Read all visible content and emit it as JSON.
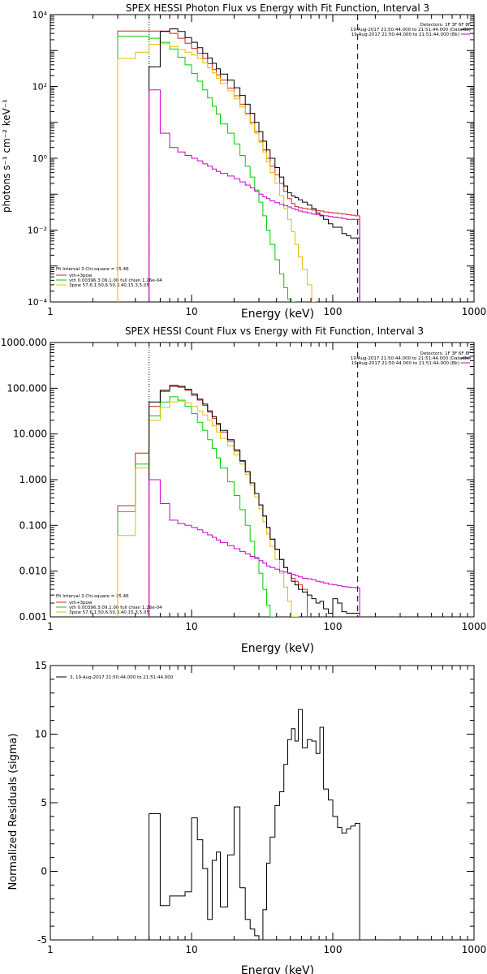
{
  "panels": [
    {
      "title": "SPEX HESSI Photon Flux vs Energy with Fit Function, Interval 3",
      "xlabel": "Energy (keV)",
      "ylabel": "photons s⁻¹ cm⁻² keV⁻¹",
      "info_lines": [
        "Detectors: 1F 3F 6F 8F",
        "19-Aug-2017 21:50:44.000 to 21:51:44.000 (Data-Bk)",
        "19-Aug-2017 21:50:44.000 to 21:51:44.000 (Bk)"
      ],
      "fit_lines": [
        "Fit Interval 3   Chi-square = 35.46",
        "vth+3pow",
        "vth 0.00396,3.09,1.00  full chian 1.26e-04",
        "3pow 57.6,1.50,6.50,3.40,15.3,5.05"
      ],
      "yticks": [
        {
          "v": 0.0001,
          "label": "10⁻⁴"
        },
        {
          "v": 0.01,
          "label": "10⁻²"
        },
        {
          "v": 1,
          "label": "10⁰"
        },
        {
          "v": 100,
          "label": "10²"
        },
        {
          "v": 10000,
          "label": "10⁴"
        }
      ]
    },
    {
      "title": "SPEX HESSI Count Flux vs Energy with Fit Function, Interval 3",
      "xlabel": "Energy (keV)",
      "ylabel": "",
      "info_lines": [
        "Detectors: 1F 3F 6F 8F",
        "19-Aug-2017 21:50:44.000 to 21:51:44.000 (Data-Bk)",
        "19-Aug-2017 21:50:44.000 to 21:51:44.000 (Bk)"
      ],
      "fit_lines": [
        "Fit Interval 3   Chi-square = 35.46",
        "vth+3pow",
        "vth 0.00396,3.09,1.00  full chian 1.26e-04",
        "3pow 57.6,1.50,6.50,3.40,15.3,5.05"
      ],
      "yticks": [
        {
          "v": 0.001,
          "label": "0.001"
        },
        {
          "v": 0.01,
          "label": "0.010"
        },
        {
          "v": 0.1,
          "label": "0.100"
        },
        {
          "v": 1,
          "label": "1.000"
        },
        {
          "v": 10,
          "label": "10.000"
        },
        {
          "v": 100,
          "label": "100.000"
        },
        {
          "v": 1000,
          "label": "1000.000"
        }
      ]
    },
    {
      "title": "",
      "xlabel": "Energy (keV)",
      "ylabel": "Normalized Residuals (sigma)",
      "legend_line": "3, 19-Aug-2017 21:50:44.000 to 21:51:44.000",
      "yticks": [
        {
          "v": -5,
          "label": "-5"
        },
        {
          "v": 0,
          "label": "0"
        },
        {
          "v": 5,
          "label": "5"
        },
        {
          "v": 10,
          "label": "10"
        },
        {
          "v": 15,
          "label": "15"
        }
      ]
    }
  ],
  "chart_data": [
    {
      "type": "line",
      "title": "SPEX HESSI Photon Flux vs Energy with Fit Function, Interval 3",
      "xlabel": "Energy (keV)",
      "ylabel": "photons s⁻¹ cm⁻² keV⁻¹",
      "xscale": "log",
      "yscale": "log",
      "xlim": [
        1,
        1000
      ],
      "ylim": [
        0.0001,
        10000
      ],
      "xticks": [
        1,
        10,
        100,
        1000
      ],
      "vlines": [
        {
          "x": 5,
          "style": "dotted"
        },
        {
          "x": 150,
          "style": "dashed"
        }
      ],
      "x_edges": [
        3,
        4,
        5,
        6,
        7,
        8,
        9,
        10,
        11,
        12,
        13,
        14,
        15,
        16,
        18,
        20,
        22,
        24,
        26,
        28,
        30,
        32,
        34,
        36,
        39,
        42,
        45,
        48,
        51,
        54,
        57,
        61,
        66,
        71,
        76,
        81,
        86,
        93,
        100,
        108,
        116,
        125,
        134,
        144,
        155
      ],
      "series": [
        {
          "name": "vth+3pow",
          "color": "#d42020",
          "start_edge": 0,
          "values": [
            3500,
            3500,
            3500,
            3500,
            3000,
            2200,
            1600,
            1150,
            830,
            600,
            430,
            300,
            210,
            150,
            90,
            55,
            32,
            18,
            10,
            5.5,
            3,
            1.7,
            1,
            0.6,
            0.35,
            0.2,
            0.12,
            0.075,
            0.055,
            0.045,
            0.042,
            0.04,
            0.038,
            0.036,
            0.035,
            0.034,
            0.032,
            0.031,
            0.03,
            0.029,
            0.028,
            0.027,
            0.026,
            0.025
          ]
        },
        {
          "name": "vth 0.00396,3.09,1.00  full chian 1.26e-04",
          "color": "#00cc00",
          "start_edge": 0,
          "values": [
            2500,
            2500,
            2200,
            1700,
            1100,
            650,
            400,
            230,
            140,
            80,
            48,
            28,
            17,
            9,
            5,
            2.5,
            1.2,
            0.6,
            0.3,
            0.13,
            0.06,
            0.025,
            0.01,
            0.004,
            0.0015,
            0.0006,
            0.00025,
            0.00012,
            5e-05
          ]
        },
        {
          "name": "3pow 57.6,1.50,6.50,3.40,15.3,5.05",
          "color": "#e0c000",
          "start_edge": 0,
          "values": [
            600,
            900,
            1500,
            1550,
            1300,
            1050,
            900,
            750,
            600,
            450,
            330,
            240,
            170,
            120,
            75,
            45,
            27,
            16,
            9,
            5,
            2.8,
            1.5,
            0.8,
            0.4,
            0.2,
            0.09,
            0.04,
            0.02,
            0.009,
            0.004,
            0.0018,
            0.0008,
            0.0003,
            0.0001
          ]
        },
        {
          "name": "Data-Bk",
          "color": "#000000",
          "start_edge": 2,
          "values": [
            350,
            3400,
            4000,
            3400,
            2300,
            1700,
            1200,
            840,
            620,
            440,
            310,
            220,
            150,
            92,
            56,
            32,
            18,
            10,
            5.5,
            3,
            1.7,
            1,
            0.55,
            0.3,
            0.17,
            0.11,
            0.09,
            0.08,
            0.07,
            0.06,
            0.05,
            0.04,
            0.03,
            0.025,
            0.02,
            0.015,
            0.012,
            0.012,
            0.008,
            0.007,
            0.006,
            0.006
          ]
        },
        {
          "name": "Bk",
          "color": "#cc00cc",
          "start_edge": 2,
          "values": [
            80,
            5,
            2,
            1.5,
            1.2,
            1,
            0.85,
            0.7,
            0.6,
            0.5,
            0.43,
            0.38,
            0.32,
            0.27,
            0.22,
            0.18,
            0.15,
            0.12,
            0.1,
            0.085,
            0.075,
            0.065,
            0.058,
            0.052,
            0.048,
            0.044,
            0.04,
            0.037,
            0.034,
            0.032,
            0.03,
            0.028,
            0.027,
            0.026,
            0.025,
            0.024,
            0.023,
            0.022,
            0.021,
            0.02,
            0.02,
            0.02
          ]
        }
      ]
    },
    {
      "type": "line",
      "title": "SPEX HESSI Count Flux vs Energy with Fit Function, Interval 3",
      "xlabel": "Energy (keV)",
      "xscale": "log",
      "yscale": "log",
      "xlim": [
        1,
        1000
      ],
      "ylim": [
        0.001,
        1000
      ],
      "xticks": [
        1,
        10,
        100,
        1000
      ],
      "vlines": [
        {
          "x": 5,
          "style": "dotted"
        },
        {
          "x": 150,
          "style": "dashed"
        }
      ],
      "x_edges": [
        3,
        4,
        5,
        6,
        7,
        8,
        9,
        10,
        11,
        12,
        13,
        14,
        15,
        16,
        18,
        20,
        22,
        24,
        26,
        28,
        30,
        32,
        34,
        36,
        39,
        42,
        45,
        48,
        51,
        54,
        57,
        61,
        66,
        71,
        76,
        81,
        86,
        93,
        100,
        108,
        116,
        125,
        134,
        144,
        155
      ],
      "series": [
        {
          "name": "vth+3pow",
          "color": "#d42020",
          "start_edge": 0,
          "values": [
            0.27,
            3.8,
            40,
            85,
            110,
            105,
            90,
            70,
            55,
            42,
            30,
            22,
            16,
            11,
            7,
            4.2,
            2.5,
            1.5,
            0.85,
            0.5,
            0.28,
            0.16,
            0.09,
            0.05,
            0.03,
            0.018,
            0.012,
            0.009,
            0.007,
            0.006,
            0.005,
            0.004
          ]
        },
        {
          "name": "vth 0.00396,3.09,1.00  full chian 1.26e-04",
          "color": "#00cc00",
          "start_edge": 0,
          "values": [
            0.2,
            2.2,
            25,
            50,
            65,
            55,
            40,
            28,
            18,
            12,
            7.5,
            4.8,
            3,
            1.8,
            0.9,
            0.45,
            0.22,
            0.1,
            0.045,
            0.02,
            0.009,
            0.004,
            0.0018,
            0.0008
          ]
        },
        {
          "name": "3pow 57.6,1.50,6.50,3.40,15.3,5.05",
          "color": "#e0c000",
          "start_edge": 0,
          "values": [
            0.06,
            1.8,
            20,
            38,
            50,
            52,
            48,
            40,
            32,
            26,
            20,
            15,
            11,
            8,
            5.5,
            3.5,
            2.2,
            1.3,
            0.75,
            0.42,
            0.23,
            0.12,
            0.065,
            0.035,
            0.018,
            0.009,
            0.0045,
            0.0022,
            0.001,
            0.0004
          ]
        },
        {
          "name": "Data-Bk",
          "color": "#000000",
          "start_edge": 2,
          "values": [
            50,
            90,
            115,
            110,
            95,
            75,
            58,
            45,
            32,
            24,
            17,
            12,
            7.5,
            4.5,
            2.6,
            1.5,
            0.85,
            0.5,
            0.28,
            0.16,
            0.09,
            0.05,
            0.03,
            0.018,
            0.012,
            0.009,
            0.006,
            0.005,
            0.004,
            0.0035,
            0.003,
            0.0025,
            0.002,
            0.0022,
            0.0015,
            0.0012,
            0.0025,
            0.002,
            0.0013,
            0.0012,
            0.0012,
            0.0012
          ]
        },
        {
          "name": "Bk",
          "color": "#cc00cc",
          "start_edge": 2,
          "values": [
            1,
            0.3,
            0.13,
            0.11,
            0.1,
            0.09,
            0.08,
            0.07,
            0.062,
            0.055,
            0.048,
            0.042,
            0.036,
            0.031,
            0.027,
            0.024,
            0.021,
            0.019,
            0.017,
            0.015,
            0.013,
            0.012,
            0.011,
            0.01,
            0.0095,
            0.009,
            0.0085,
            0.008,
            0.0075,
            0.007,
            0.0068,
            0.0065,
            0.006,
            0.0058,
            0.0055,
            0.0052,
            0.005,
            0.0048,
            0.0046,
            0.0045,
            0.0044,
            0.0043
          ]
        }
      ]
    },
    {
      "type": "line",
      "title": "",
      "xlabel": "Energy (keV)",
      "ylabel": "Normalized Residuals (sigma)",
      "xscale": "log",
      "yscale": "linear",
      "xlim": [
        1,
        1000
      ],
      "ylim": [
        -5,
        15
      ],
      "xticks": [
        1,
        10,
        100,
        1000
      ],
      "x_edges": [
        5,
        6,
        7,
        8,
        9,
        10,
        11,
        12,
        13,
        14,
        15,
        16,
        18,
        20,
        22,
        24,
        26,
        28,
        30,
        32,
        34,
        36,
        39,
        42,
        45,
        48,
        51,
        54,
        57,
        61,
        66,
        71,
        76,
        81,
        86,
        93,
        100,
        108,
        116,
        125,
        134,
        144,
        155
      ],
      "series": [
        {
          "name": "3, 19-Aug-2017 21:50:44.000 to 21:51:44.000",
          "color": "#000000",
          "start_edge": 0,
          "values": [
            4.2,
            -2.5,
            -1.8,
            -1.8,
            -1.5,
            3.9,
            2.3,
            0.2,
            -3.5,
            0.8,
            1.4,
            -2.6,
            1.2,
            4.7,
            -1.2,
            -3.5,
            -4.2,
            -4.7,
            -5.2,
            -2.8,
            0.6,
            2.5,
            4.8,
            5.8,
            7.8,
            9.6,
            10.4,
            9.5,
            11.8,
            9.0,
            9.6,
            9.5,
            8.6,
            10.5,
            6.0,
            5.2,
            4.0,
            3.2,
            2.8,
            3.1,
            3.3,
            3.5
          ]
        }
      ]
    }
  ]
}
